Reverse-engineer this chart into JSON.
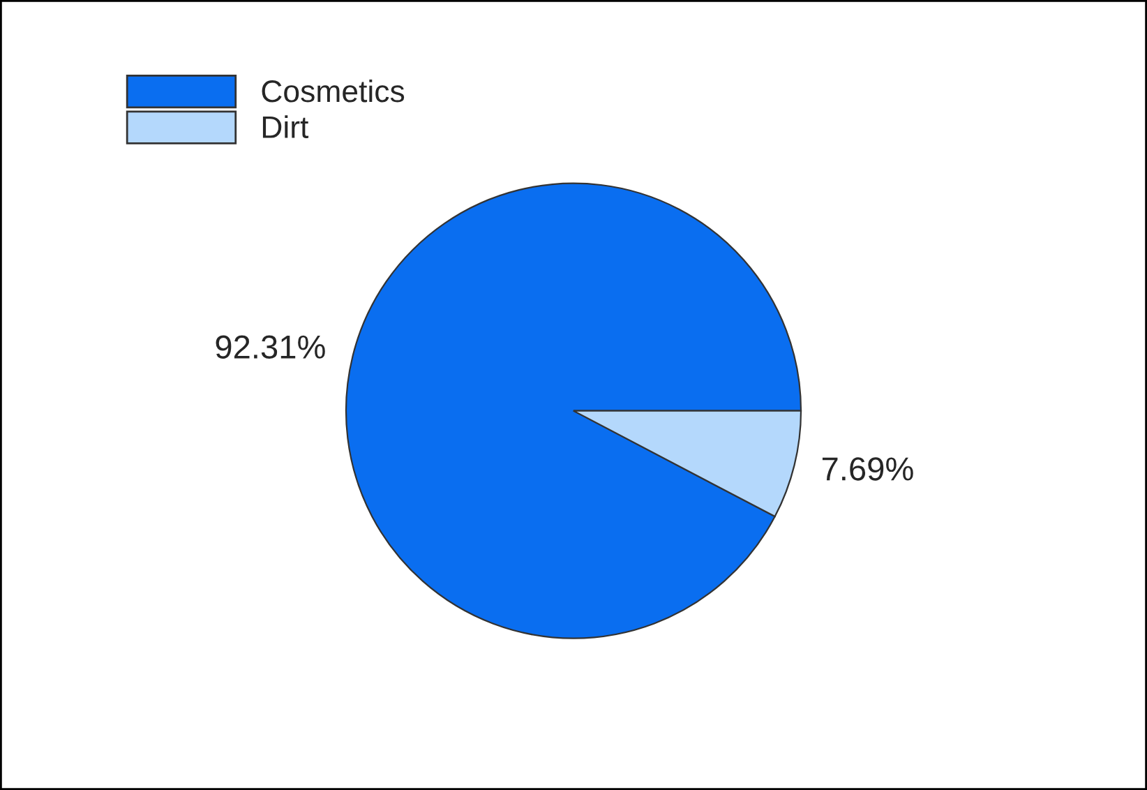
{
  "chart_data": {
    "type": "pie",
    "categories": [
      "Cosmetics",
      "Dirt"
    ],
    "values": [
      92.31,
      7.69
    ],
    "colors": [
      "#0a6ef0",
      "#b4d8fc"
    ],
    "value_labels": [
      "92.31%",
      "7.69%"
    ],
    "legend": "top left"
  }
}
